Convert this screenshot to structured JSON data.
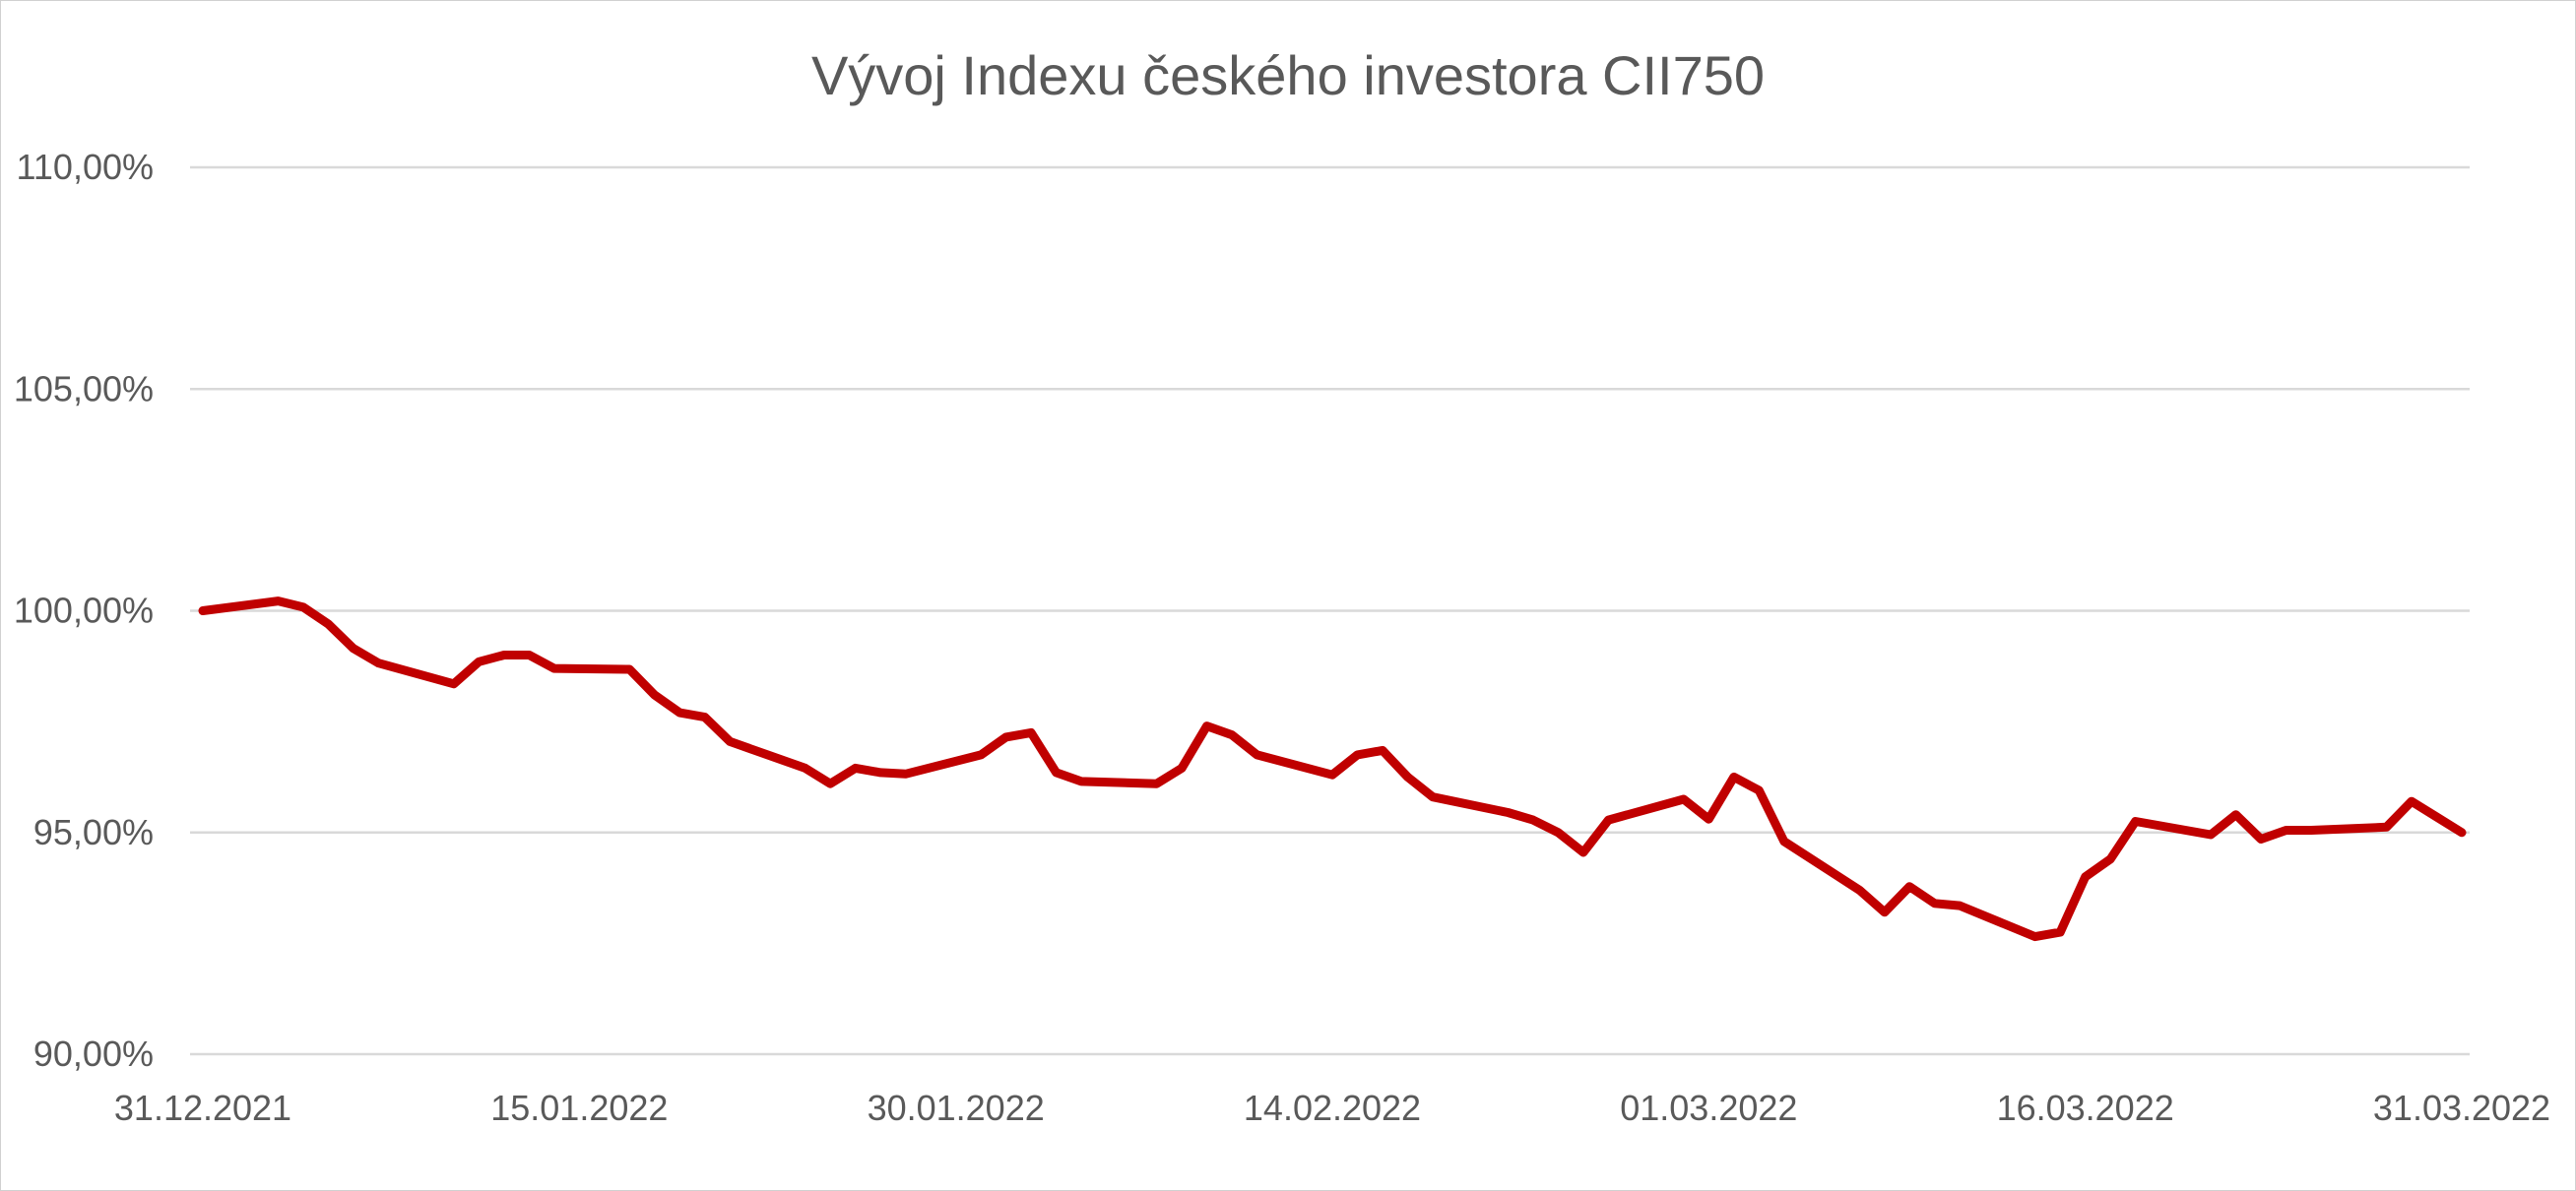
{
  "chart_data": {
    "type": "line",
    "title": "Vývoj Indexu českého investora CII750",
    "xlabel": "",
    "ylabel": "",
    "ylim": [
      90,
      110
    ],
    "y_ticks": [
      90,
      95,
      100,
      105,
      110
    ],
    "y_tick_labels": [
      "90,00%",
      "95,00%",
      "100,00%",
      "105,00%",
      "110,00%"
    ],
    "x_range": [
      "2021-12-31",
      "2022-03-31"
    ],
    "x_tick_labels": [
      {
        "date": "2021-12-31",
        "label": "31.12.2021"
      },
      {
        "date": "2022-01-15",
        "label": "15.01.2022"
      },
      {
        "date": "2022-01-30",
        "label": "30.01.2022"
      },
      {
        "date": "2022-02-14",
        "label": "14.02.2022"
      },
      {
        "date": "2022-03-01",
        "label": "01.03.2022"
      },
      {
        "date": "2022-03-16",
        "label": "16.03.2022"
      },
      {
        "date": "2022-03-31",
        "label": "31.03.2022"
      }
    ],
    "grid": true,
    "legend": "none",
    "series": [
      {
        "color": "#c00000",
        "points": [
          [
            "2021-12-31",
            100.0
          ],
          [
            "2022-01-03",
            100.22
          ],
          [
            "2022-01-04",
            100.08
          ],
          [
            "2022-01-05",
            99.7
          ],
          [
            "2022-01-06",
            99.15
          ],
          [
            "2022-01-07",
            98.82
          ],
          [
            "2022-01-10",
            98.35
          ],
          [
            "2022-01-11",
            98.85
          ],
          [
            "2022-01-12",
            99.0
          ],
          [
            "2022-01-13",
            99.0
          ],
          [
            "2022-01-14",
            98.7
          ],
          [
            "2022-01-17",
            98.68
          ],
          [
            "2022-01-18",
            98.1
          ],
          [
            "2022-01-19",
            97.7
          ],
          [
            "2022-01-20",
            97.6
          ],
          [
            "2022-01-21",
            97.05
          ],
          [
            "2022-01-24",
            96.45
          ],
          [
            "2022-01-25",
            96.1
          ],
          [
            "2022-01-26",
            96.45
          ],
          [
            "2022-01-27",
            96.35
          ],
          [
            "2022-01-28",
            96.32
          ],
          [
            "2022-01-31",
            96.75
          ],
          [
            "2022-02-01",
            97.15
          ],
          [
            "2022-02-02",
            97.25
          ],
          [
            "2022-02-03",
            96.35
          ],
          [
            "2022-02-04",
            96.15
          ],
          [
            "2022-02-07",
            96.1
          ],
          [
            "2022-02-08",
            96.45
          ],
          [
            "2022-02-09",
            97.4
          ],
          [
            "2022-02-10",
            97.2
          ],
          [
            "2022-02-11",
            96.75
          ],
          [
            "2022-02-14",
            96.3
          ],
          [
            "2022-02-15",
            96.75
          ],
          [
            "2022-02-16",
            96.85
          ],
          [
            "2022-02-17",
            96.25
          ],
          [
            "2022-02-18",
            95.8
          ],
          [
            "2022-02-21",
            95.45
          ],
          [
            "2022-02-22",
            95.28
          ],
          [
            "2022-02-23",
            95.0
          ],
          [
            "2022-02-24",
            94.55
          ],
          [
            "2022-02-25",
            95.28
          ],
          [
            "2022-02-28",
            95.75
          ],
          [
            "2022-03-01",
            95.3
          ],
          [
            "2022-03-02",
            96.25
          ],
          [
            "2022-03-03",
            95.95
          ],
          [
            "2022-03-04",
            94.8
          ],
          [
            "2022-03-07",
            93.7
          ],
          [
            "2022-03-08",
            93.2
          ],
          [
            "2022-03-09",
            93.78
          ],
          [
            "2022-03-10",
            93.4
          ],
          [
            "2022-03-11",
            93.35
          ],
          [
            "2022-03-14",
            92.65
          ],
          [
            "2022-03-15",
            92.75
          ],
          [
            "2022-03-16",
            94.0
          ],
          [
            "2022-03-17",
            94.4
          ],
          [
            "2022-03-18",
            95.25
          ],
          [
            "2022-03-21",
            94.95
          ],
          [
            "2022-03-22",
            95.4
          ],
          [
            "2022-03-23",
            94.85
          ],
          [
            "2022-03-24",
            95.05
          ],
          [
            "2022-03-25",
            95.05
          ],
          [
            "2022-03-28",
            95.12
          ],
          [
            "2022-03-29",
            95.7
          ],
          [
            "2022-03-30",
            95.35
          ],
          [
            "2022-03-31",
            95.0
          ]
        ]
      }
    ]
  }
}
